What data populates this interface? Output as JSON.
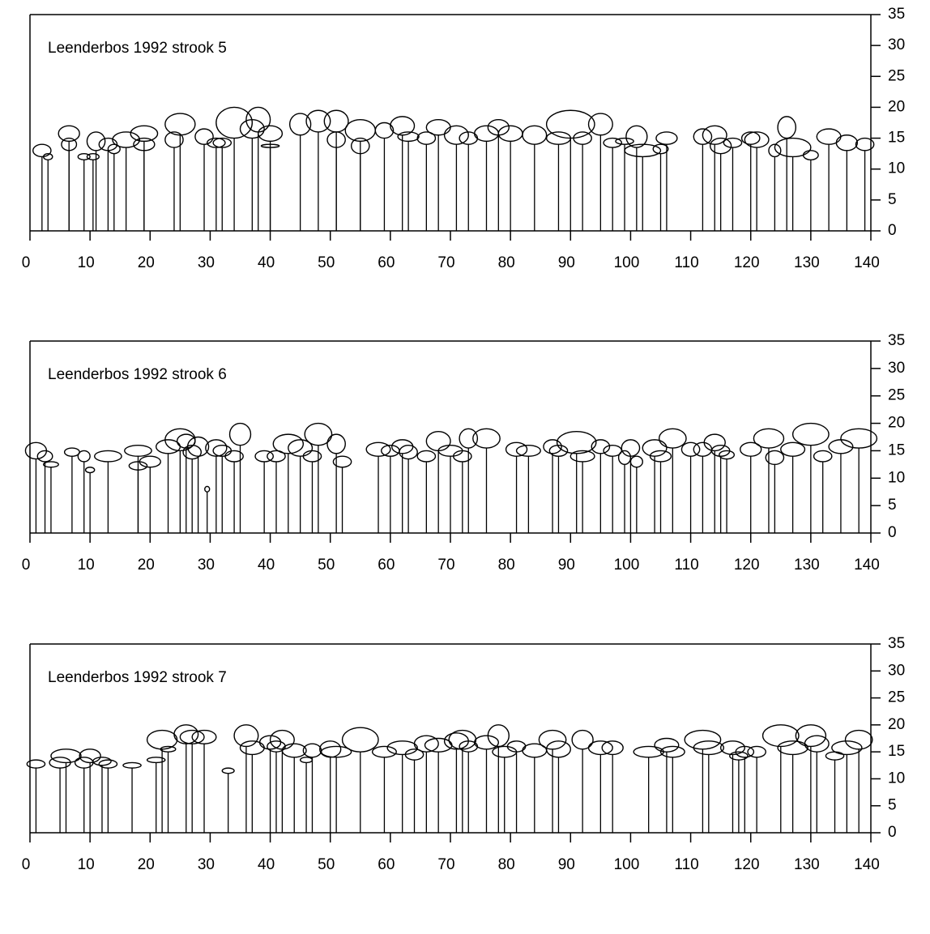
{
  "chart_data": [
    {
      "type": "profile",
      "title": "Leenderbos 1992 strook 5",
      "xlim": [
        0,
        140
      ],
      "xticks": [
        0,
        10,
        20,
        30,
        40,
        50,
        60,
        70,
        80,
        90,
        100,
        110,
        120,
        130,
        140
      ],
      "ylim": [
        0,
        35
      ],
      "yticks": [
        0,
        5,
        10,
        15,
        20,
        25,
        30,
        35
      ],
      "color": "#000000",
      "x": [
        2,
        3,
        6.5,
        6.5,
        9,
        10.5,
        11,
        13,
        14,
        16,
        19,
        19,
        25,
        24,
        29,
        31,
        32,
        34,
        37,
        38,
        40,
        40,
        45,
        48,
        51,
        51,
        55,
        55,
        59,
        62,
        63,
        66,
        68,
        71,
        73,
        76,
        78,
        80,
        84,
        88,
        90,
        92,
        95,
        97,
        99,
        101,
        102,
        105,
        106,
        112,
        114,
        115,
        117,
        120,
        121,
        124,
        126,
        127,
        130,
        133,
        136,
        139
      ],
      "values": [
        14,
        12.5,
        17,
        15,
        12.5,
        12.5,
        16,
        15,
        14,
        16,
        17,
        15,
        19,
        16,
        16.5,
        15,
        15,
        20,
        18,
        20,
        17,
        14,
        19,
        19.5,
        19.5,
        16,
        18,
        15,
        17.5,
        18.5,
        16,
        16,
        18,
        17,
        16,
        17,
        18,
        17,
        17,
        16,
        19.5,
        16,
        19,
        15,
        15,
        17,
        14,
        14,
        16,
        16.5,
        17,
        15,
        15,
        16,
        16,
        14,
        18.5,
        15,
        13,
        16.5,
        15.5,
        15
      ],
      "crown_base": [
        12,
        11.5,
        14.5,
        13,
        11.5,
        11.5,
        13,
        13,
        12.5,
        13.5,
        14.5,
        13,
        15.5,
        13.5,
        14,
        13.5,
        13.5,
        15,
        15,
        16,
        14.5,
        13.5,
        15.5,
        16,
        16,
        13.5,
        14.5,
        12.5,
        15,
        15.5,
        14.5,
        14,
        15.5,
        14,
        14,
        14.5,
        15.5,
        14.5,
        14,
        14,
        15,
        14,
        15.5,
        13.5,
        14,
        13.5,
        12,
        12.5,
        14,
        14,
        14,
        12.5,
        13.5,
        14,
        13.5,
        12,
        15,
        12,
        11.5,
        14,
        13,
        13
      ],
      "crown_width": [
        3,
        1.5,
        3.5,
        2.5,
        2,
        2,
        3,
        3,
        2,
        4.5,
        4.5,
        3.5,
        5,
        3,
        3,
        3,
        3,
        6,
        4,
        4,
        4,
        3,
        3.5,
        4,
        4,
        3,
        5,
        3,
        3,
        4,
        3.5,
        3,
        4,
        4,
        3,
        4,
        3.5,
        4,
        4,
        4,
        8,
        3,
        4,
        3,
        3,
        3.5,
        6,
        2.5,
        3.5,
        3,
        4,
        3.5,
        3,
        3,
        4,
        2,
        3,
        6,
        2.5,
        4,
        3.5,
        3
      ]
    },
    {
      "type": "profile",
      "title": "Leenderbos 1992 strook 6",
      "xlim": [
        0,
        140
      ],
      "xticks": [
        0,
        10,
        20,
        30,
        40,
        50,
        60,
        70,
        80,
        90,
        100,
        110,
        120,
        130,
        140
      ],
      "ylim": [
        0,
        35
      ],
      "yticks": [
        0,
        5,
        10,
        15,
        20,
        25,
        30,
        35
      ],
      "color": "#000000",
      "x": [
        1,
        2.5,
        3.5,
        7,
        9,
        10,
        13,
        18,
        18,
        20,
        23,
        25,
        26,
        27,
        28,
        29.5,
        31,
        32,
        34,
        35,
        39,
        41,
        43,
        45,
        47,
        48,
        51,
        52,
        58,
        60,
        62,
        63,
        66,
        68,
        70,
        72,
        73,
        76,
        81,
        83,
        87,
        88,
        91,
        92,
        95,
        97,
        99,
        100,
        101,
        104,
        105,
        107,
        110,
        112,
        114,
        115,
        116,
        120,
        123,
        124,
        127,
        130,
        132,
        135,
        138
      ],
      "values": [
        16.5,
        15,
        13,
        15.5,
        15,
        12,
        15,
        16,
        13,
        14,
        17,
        19,
        18,
        16,
        17.5,
        8.5,
        17,
        16,
        15,
        20,
        15,
        15,
        18,
        17,
        15,
        20,
        18,
        14,
        16.5,
        16,
        17,
        16,
        15,
        18.5,
        16,
        15,
        19,
        19,
        16.5,
        16,
        17,
        16,
        18.5,
        15,
        17,
        16,
        15,
        17,
        14,
        17,
        15,
        19,
        16.5,
        16.5,
        18,
        16,
        15,
        16.5,
        19,
        15,
        16.5,
        20,
        15,
        17,
        19
      ],
      "crown_base": [
        13.5,
        13,
        12,
        14,
        13,
        11,
        13,
        14,
        11.5,
        12,
        14.5,
        15,
        15.5,
        13.5,
        14,
        7.5,
        14,
        14,
        13,
        16,
        13,
        13,
        14.5,
        14,
        13,
        16,
        14.5,
        12,
        14,
        14,
        14.5,
        13.5,
        13,
        15,
        14,
        13,
        15.5,
        15.5,
        14,
        14,
        14.5,
        14,
        14.5,
        13,
        14.5,
        14,
        12.5,
        14,
        12,
        14,
        13,
        15.5,
        14,
        14,
        15,
        14,
        13.5,
        14,
        15.5,
        12.5,
        14,
        16,
        13,
        14.5,
        15.5
      ],
      "crown_width": [
        3.5,
        2.5,
        2.5,
        2.5,
        2,
        1.5,
        4.5,
        4.5,
        3,
        3.5,
        4,
        5,
        3,
        3,
        3.5,
        0.8,
        3.5,
        3,
        3,
        3.5,
        3,
        3,
        5,
        4,
        3,
        4.5,
        3,
        3,
        4,
        3,
        3.5,
        3,
        3,
        4,
        4,
        3,
        3,
        4.5,
        3.5,
        4,
        3,
        3,
        6.5,
        4,
        3,
        3,
        2,
        3,
        2,
        4,
        3.5,
        4.5,
        3,
        3,
        3.5,
        3,
        2.5,
        3.5,
        5,
        3,
        4,
        6,
        3,
        4,
        6
      ]
    },
    {
      "type": "profile",
      "title": "Leenderbos 1992 strook 7",
      "xlim": [
        0,
        140
      ],
      "xticks": [
        0,
        10,
        20,
        30,
        40,
        50,
        60,
        70,
        80,
        90,
        100,
        110,
        120,
        130,
        140
      ],
      "ylim": [
        0,
        35
      ],
      "yticks": [
        0,
        5,
        10,
        15,
        20,
        25,
        30,
        35
      ],
      "color": "#000000",
      "x": [
        1,
        5,
        6,
        9,
        10,
        12,
        13,
        17,
        21,
        22,
        23,
        26,
        27,
        29,
        33,
        36,
        37,
        40,
        41,
        42,
        44,
        46,
        47,
        50,
        51,
        55,
        59,
        62,
        64,
        66,
        68,
        71,
        72,
        73,
        76,
        78,
        79,
        81,
        84,
        87,
        88,
        92,
        95,
        97,
        103,
        106,
        107,
        112,
        113,
        117,
        118,
        119,
        121,
        125,
        127,
        130,
        131,
        134,
        136,
        138
      ],
      "values": [
        13.5,
        14,
        15.5,
        14,
        15.5,
        14,
        13.5,
        13,
        14,
        19,
        16,
        20,
        19,
        19,
        12,
        20,
        17,
        18,
        17,
        19,
        16.5,
        14,
        16.5,
        17,
        16,
        19.5,
        16,
        17,
        15.5,
        18,
        17.5,
        18.5,
        19,
        17,
        18,
        20,
        16,
        17,
        16.5,
        19,
        17,
        19,
        17,
        17,
        16,
        17.5,
        16,
        19,
        17,
        17,
        15,
        16,
        16,
        20,
        17,
        20,
        18,
        15,
        17,
        19
      ],
      "crown_base": [
        12,
        12,
        13,
        12,
        13,
        12.5,
        12,
        12,
        13,
        15.5,
        15,
        16.5,
        16.5,
        16.5,
        11,
        16,
        14.5,
        15.5,
        15,
        15.5,
        14,
        13,
        14,
        14,
        14,
        15,
        14,
        14.5,
        13.5,
        15,
        15,
        15.5,
        15.5,
        15,
        15.5,
        16,
        14,
        15,
        14,
        15.5,
        14,
        15.5,
        14.5,
        14.5,
        14,
        15,
        14,
        15.5,
        14.5,
        14.5,
        13.5,
        14,
        14,
        16,
        14.5,
        16,
        15,
        13.5,
        14.5,
        15.5
      ],
      "crown_width": [
        3,
        3.5,
        5,
        3,
        3.5,
        3,
        3,
        3,
        3,
        5,
        2.5,
        4,
        4,
        4,
        2,
        4,
        4,
        3.5,
        3,
        4,
        4,
        2,
        3,
        3.5,
        5,
        6,
        4,
        5,
        3,
        4,
        4.5,
        4,
        4.5,
        3,
        4,
        3.5,
        4,
        3,
        4,
        4.5,
        4,
        3.5,
        4,
        3.5,
        5,
        4,
        4,
        6,
        5,
        4,
        3,
        3,
        3,
        6,
        5,
        5,
        4,
        3,
        5,
        4.5
      ]
    }
  ]
}
